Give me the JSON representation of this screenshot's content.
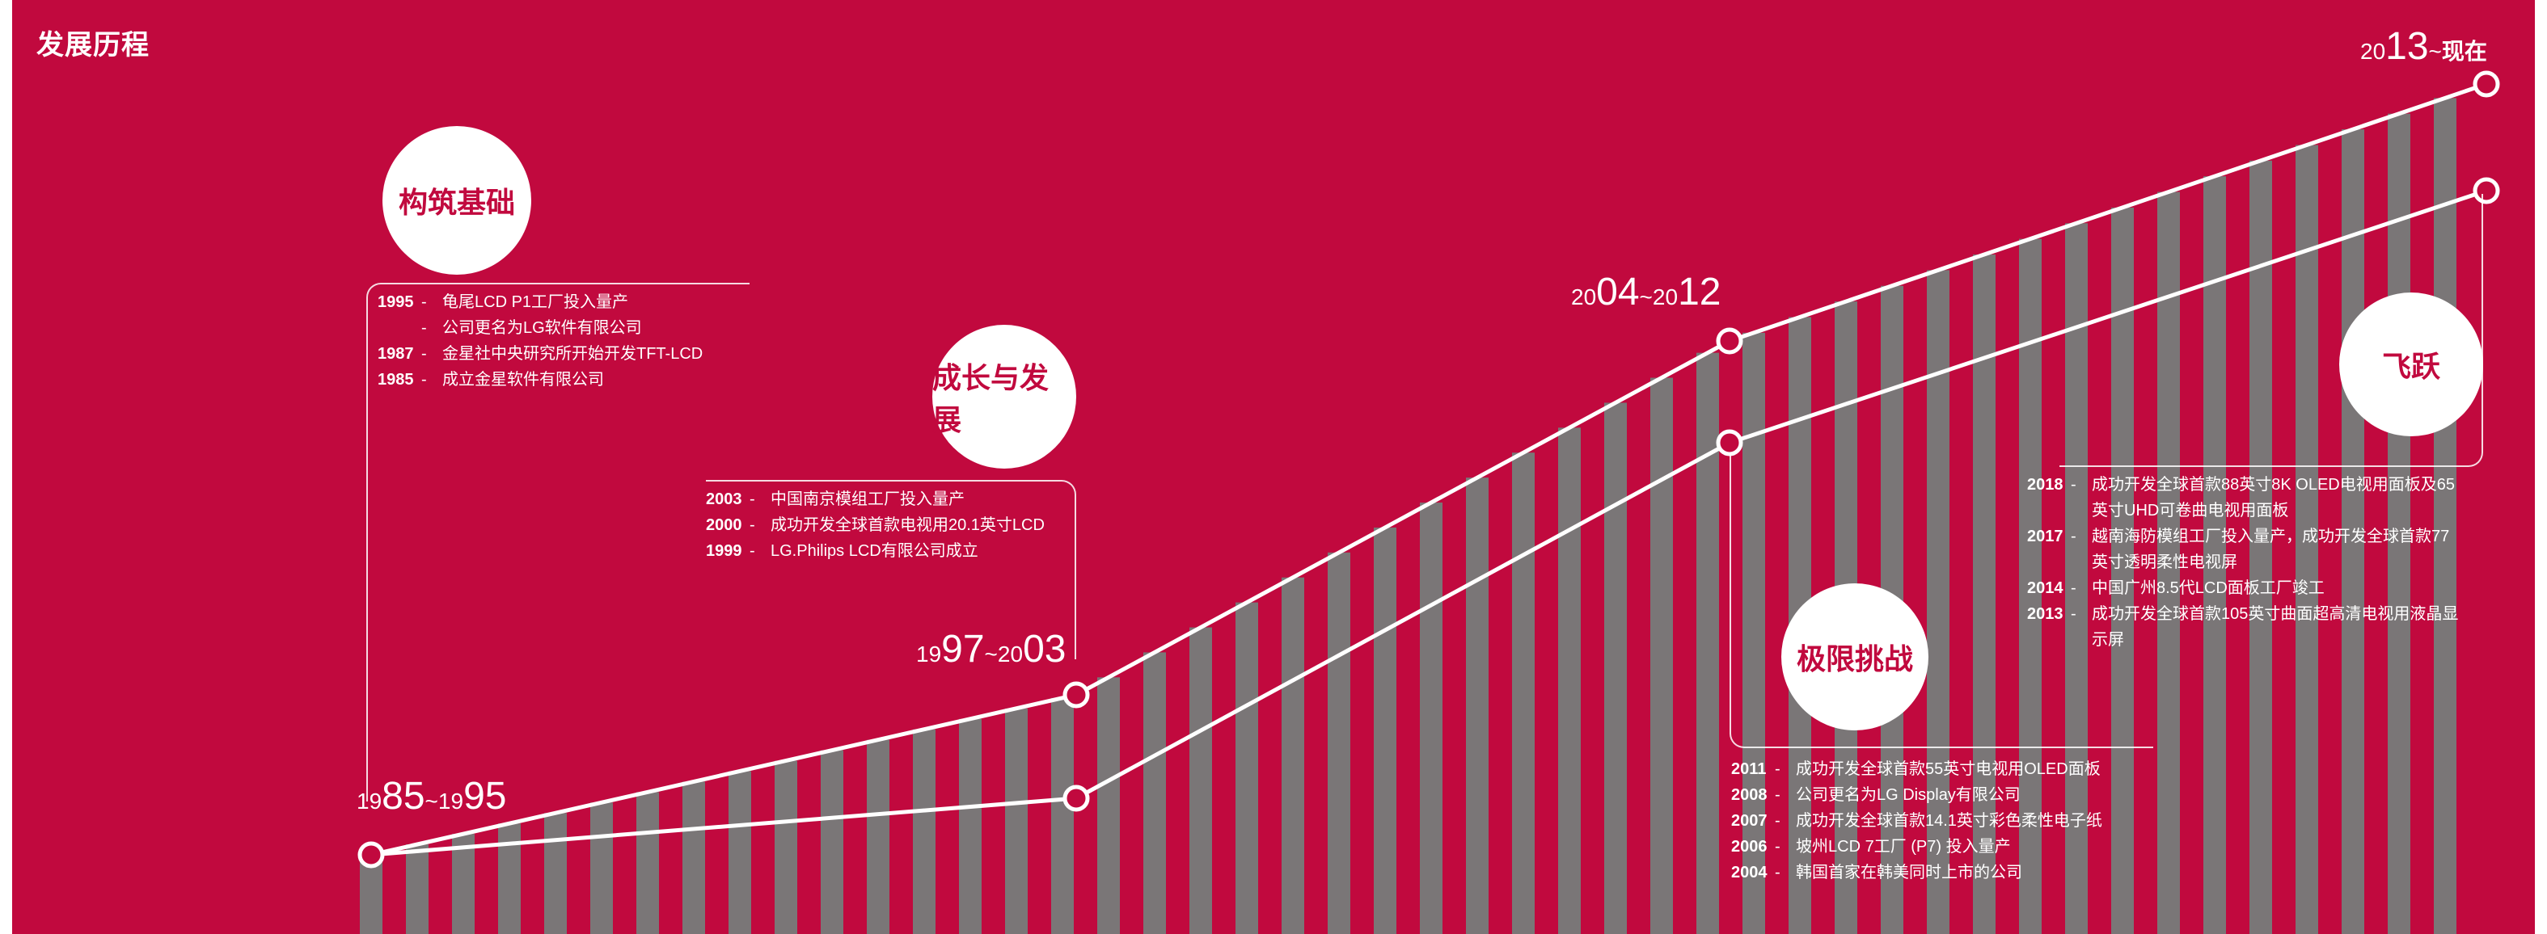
{
  "header": {
    "title": "发展历程"
  },
  "periods": [
    {
      "small1": "19",
      "big1": "85",
      "sep": "~",
      "small2": "19",
      "big2": "95"
    },
    {
      "small1": "19",
      "big1": "97",
      "sep": "~",
      "small2": "20",
      "big2": "03"
    },
    {
      "small1": "20",
      "big1": "04",
      "sep": "~",
      "small2": "20",
      "big2": "12"
    },
    {
      "small1": "20",
      "big1": "13",
      "sep": "~",
      "small2": "现在",
      "big2": ""
    }
  ],
  "stages": [
    {
      "title": "构筑基础",
      "events": [
        {
          "year": "1995",
          "text": "龟尾LCD P1工厂投入量产"
        },
        {
          "year": "",
          "text": "公司更名为LG软件有限公司"
        },
        {
          "year": "1987",
          "text": "金星社中央研究所开始开发TFT-LCD"
        },
        {
          "year": "1985",
          "text": "成立金星软件有限公司"
        }
      ]
    },
    {
      "title": "成长与发展",
      "events": [
        {
          "year": "2003",
          "text": "中国南京模组工厂投入量产"
        },
        {
          "year": "2000",
          "text": "成功开发全球首款电视用20.1英寸LCD"
        },
        {
          "year": "1999",
          "text": "LG.Philips LCD有限公司成立"
        }
      ]
    },
    {
      "title": "极限挑战",
      "events": [
        {
          "year": "2011",
          "text": "成功开发全球首款55英寸电视用OLED面板"
        },
        {
          "year": "2008",
          "text": "公司更名为LG Display有限公司"
        },
        {
          "year": "2007",
          "text": "成功开发全球首款14.1英寸彩色柔性电子纸"
        },
        {
          "year": "2006",
          "text": "坡州LCD 7工厂 (P7) 投入量产"
        },
        {
          "year": "2004",
          "text": "韩国首家在韩美同时上市的公司"
        }
      ]
    },
    {
      "title": "飞跃",
      "events": [
        {
          "year": "2018",
          "text": "成功开发全球首款88英寸8K OLED电视用面板及65英寸UHD可卷曲电视用面板"
        },
        {
          "year": "2017",
          "text": "越南海防模组工厂投入量产，成功开发全球首款77英寸透明柔性电视屏"
        },
        {
          "year": "2014",
          "text": "中国广州8.5代LCD面板工厂竣工"
        },
        {
          "year": "2013",
          "text": "成功开发全球首款105英寸曲面超高清电视用液晶显示屏"
        }
      ]
    }
  ],
  "colors": {
    "background": "#c1093e",
    "bars": "#7a7677",
    "accent": "#ffffff"
  }
}
